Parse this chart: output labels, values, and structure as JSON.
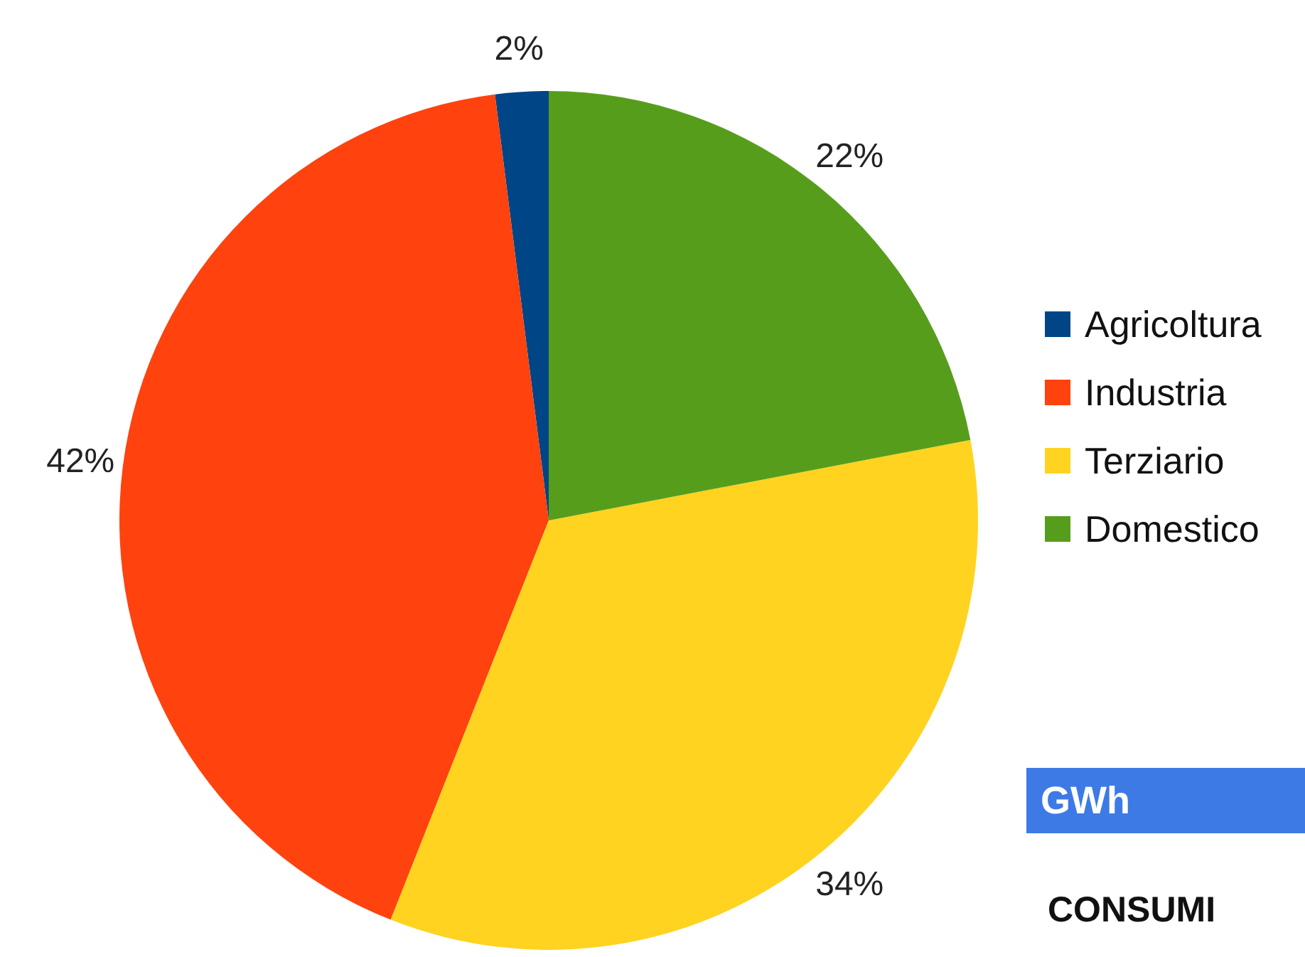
{
  "chart_data": {
    "type": "pie",
    "categories": [
      "Agricoltura",
      "Industria",
      "Terziario",
      "Domestico"
    ],
    "values": [
      2,
      42,
      34,
      22
    ],
    "value_labels": [
      "2%",
      "42%",
      "34%",
      "22%"
    ],
    "colors": [
      "#004586",
      "#ff420e",
      "#ffd320",
      "#579d1c"
    ],
    "legend": "right",
    "annotations": [
      "GWh",
      "CONSUMI"
    ]
  }
}
